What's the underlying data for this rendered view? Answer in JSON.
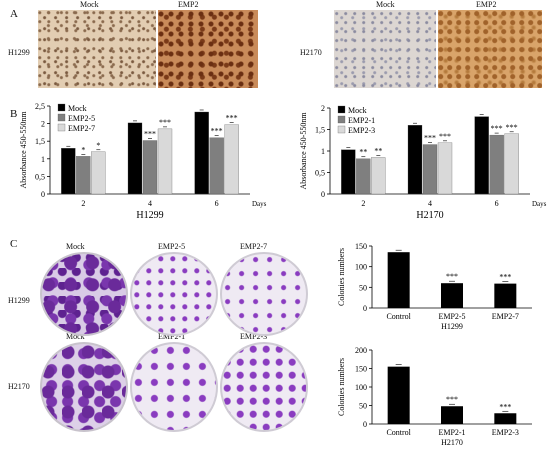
{
  "panels": {
    "a": "A",
    "b": "B",
    "c": "C"
  },
  "panelA": {
    "left": {
      "cell": "H1299",
      "mock": "Mock",
      "emp": "EMP2"
    },
    "right": {
      "cell": "H2170",
      "mock": "Mock",
      "emp": "EMP2"
    }
  },
  "panelB": {
    "days_label": "Days",
    "ylabel": "Absorbance 450-550nm",
    "left_caption": "H1299",
    "right_caption": "H2170"
  },
  "panelC": {
    "rows": [
      {
        "cell": "H1299",
        "plates": [
          "Mock",
          "EMP2-5",
          "EMP2-7"
        ]
      },
      {
        "cell": "H2170",
        "plates": [
          "Mock",
          "EMP2-1",
          "EMP2-3"
        ]
      }
    ]
  },
  "chart_data": [
    {
      "type": "bar",
      "ylabel": "Absorbance 450-550nm",
      "xlabel": "H1299",
      "categories": [
        "2",
        "4",
        "6"
      ],
      "ylim": [
        0,
        2.5
      ],
      "yticks": [
        "0",
        "0,5",
        "1",
        "1,5",
        "2",
        "2,5"
      ],
      "series": [
        {
          "name": "Mock",
          "color": "#000000",
          "values": [
            1.3,
            2.02,
            2.33
          ],
          "sig": [
            "",
            "",
            ""
          ]
        },
        {
          "name": "EMP2-5",
          "color": "#7f7f7f",
          "values": [
            1.07,
            1.52,
            1.6
          ],
          "sig": [
            "*",
            "***",
            "***"
          ]
        },
        {
          "name": "EMP2-7",
          "color": "#d9d9d9",
          "values": [
            1.2,
            1.85,
            1.97
          ],
          "sig": [
            "*",
            "***",
            "***"
          ]
        }
      ]
    },
    {
      "type": "bar",
      "ylabel": "Absorbance 450-550nm",
      "xlabel": "H2170",
      "categories": [
        "2",
        "4",
        "6"
      ],
      "ylim": [
        0,
        2
      ],
      "yticks": [
        "0",
        "0,5",
        "1",
        "1,5",
        "2"
      ],
      "series": [
        {
          "name": "Mock",
          "color": "#000000",
          "values": [
            1.03,
            1.6,
            1.8
          ],
          "sig": [
            "",
            "",
            ""
          ]
        },
        {
          "name": "EMP2-1",
          "color": "#7f7f7f",
          "values": [
            0.82,
            1.15,
            1.37
          ],
          "sig": [
            "**",
            "***",
            "***"
          ]
        },
        {
          "name": "EMP2-3",
          "color": "#d9d9d9",
          "values": [
            0.85,
            1.19,
            1.4
          ],
          "sig": [
            "**",
            "***",
            "***"
          ]
        }
      ]
    },
    {
      "type": "bar",
      "ylabel": "Colonies numbers",
      "xlabel": "H1299",
      "categories": [
        "Control",
        "EMP2-5",
        "EMP2-7"
      ],
      "ylim": [
        0,
        150
      ],
      "yticks": [
        "0",
        "50",
        "100",
        "150"
      ],
      "values": [
        135,
        60,
        59
      ],
      "sig": [
        "",
        "***",
        "***"
      ]
    },
    {
      "type": "bar",
      "ylabel": "Colonies numbers",
      "xlabel": "H2170",
      "categories": [
        "Control",
        "EMP2-1",
        "EMP2-3"
      ],
      "ylim": [
        0,
        200
      ],
      "yticks": [
        "0",
        "50",
        "100",
        "150",
        "200"
      ],
      "values": [
        155,
        48,
        29
      ],
      "sig": [
        "",
        "***",
        "***"
      ]
    }
  ]
}
